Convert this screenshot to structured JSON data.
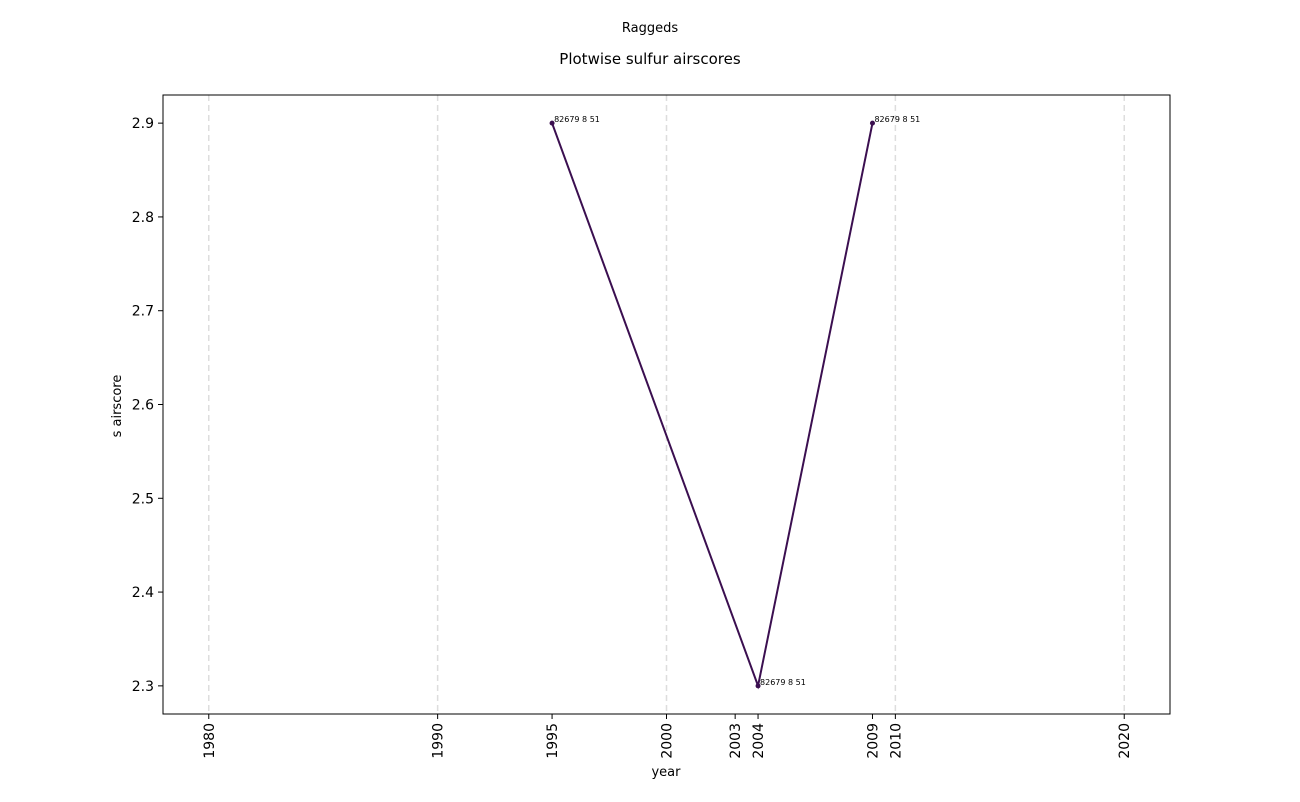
{
  "chart_data": {
    "type": "line",
    "suptitle": "Raggeds",
    "title": "Plotwise sulfur airscores",
    "x_label": "year",
    "y_label": "s airscore",
    "x": [
      1995,
      2004,
      2009
    ],
    "series": [
      {
        "color": "#3b0f50",
        "values": [
          2.9,
          2.3,
          2.9
        ],
        "point_labels": [
          "82679 8 51",
          "82679 8 51",
          "82679 8 51"
        ]
      }
    ],
    "xlim": [
      1978,
      2022
    ],
    "ylim": [
      2.27,
      2.93
    ],
    "xticks": [
      1980,
      1990,
      1995,
      2000,
      2003,
      2004,
      2009,
      2010,
      2020
    ],
    "yticks": [
      2.3,
      2.4,
      2.5,
      2.6,
      2.7,
      2.8,
      2.9
    ],
    "x_gridlines": [
      1980,
      1990,
      2000,
      2010,
      2020
    ],
    "grid_color": "#dddddd"
  }
}
